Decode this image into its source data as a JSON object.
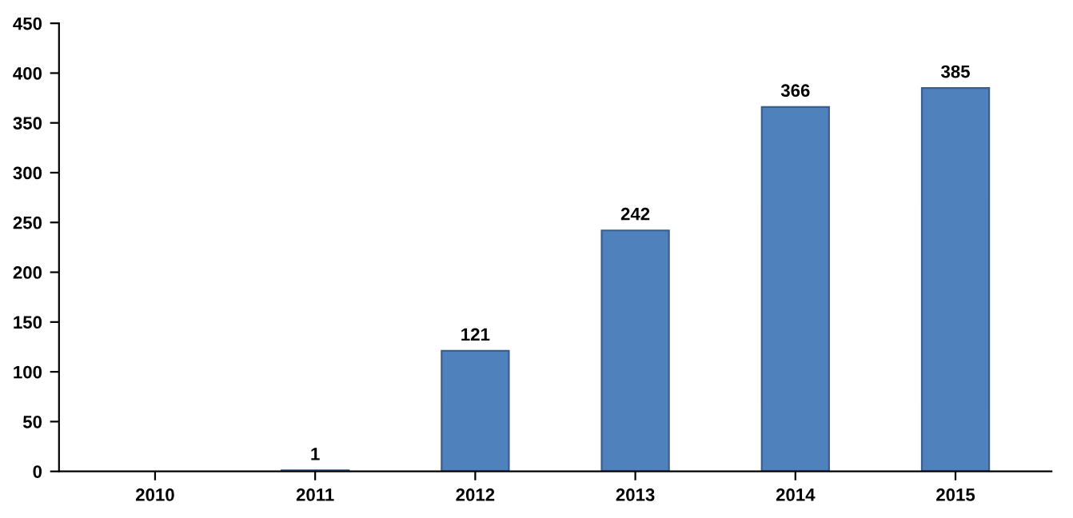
{
  "chart_data": {
    "type": "bar",
    "categories": [
      "2010",
      "2011",
      "2012",
      "2013",
      "2014",
      "2015"
    ],
    "values": [
      null,
      1,
      121,
      242,
      366,
      385
    ],
    "value_labels": [
      null,
      "1",
      "121",
      "242",
      "366",
      "385"
    ],
    "color": "#4f81bd",
    "ylim": [
      0,
      450
    ],
    "yticks": [
      0,
      50,
      100,
      150,
      200,
      250,
      300,
      350,
      400,
      450
    ],
    "grid": false
  }
}
